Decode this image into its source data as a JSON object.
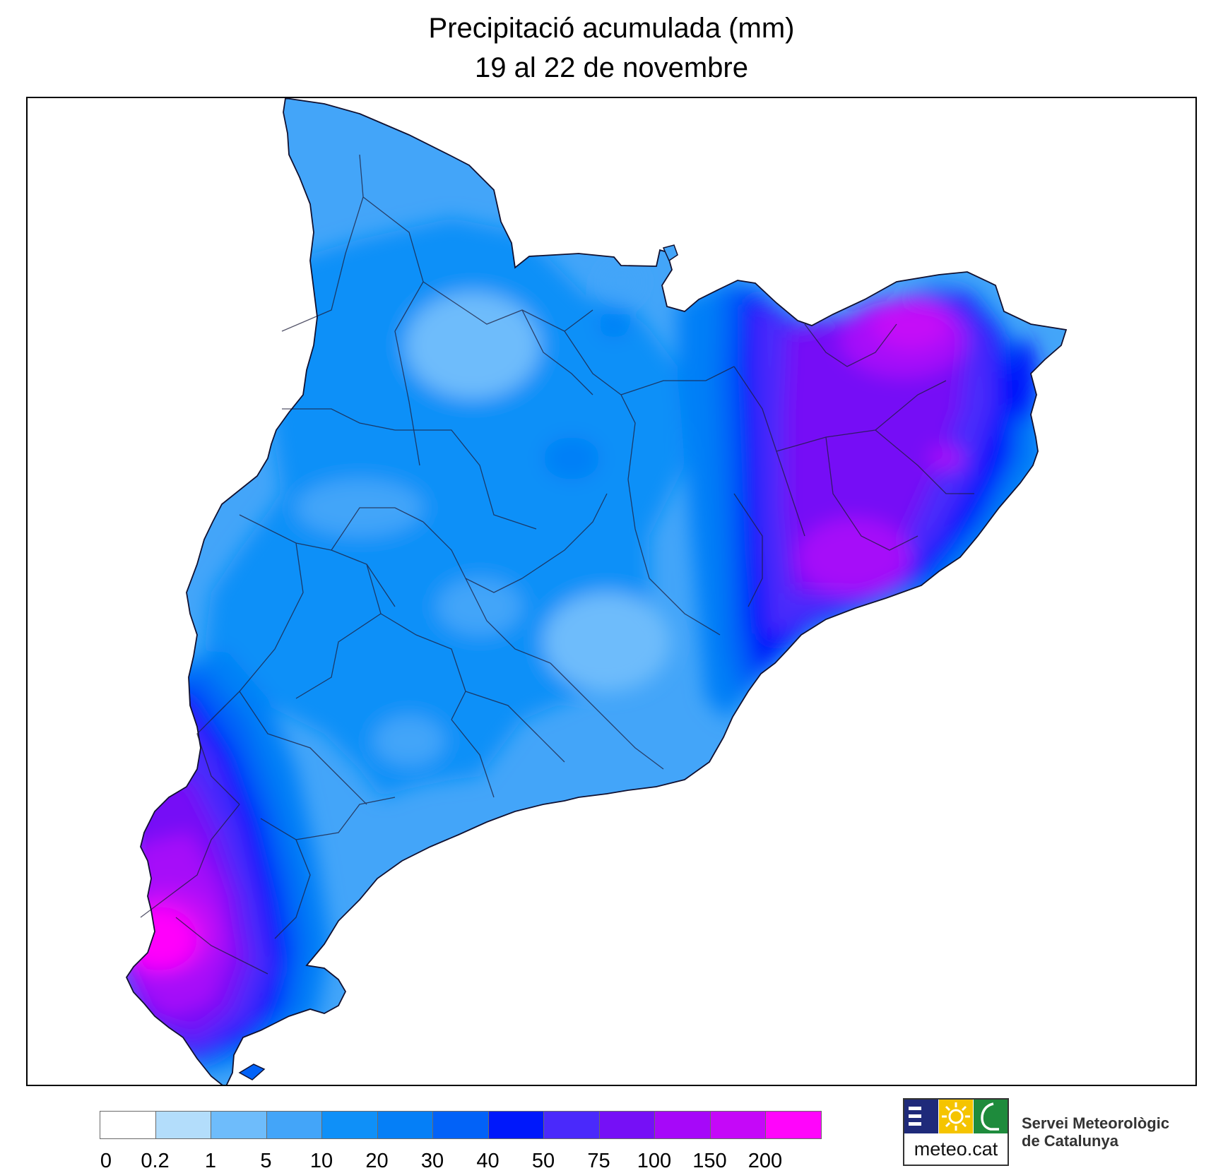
{
  "title": {
    "line1": "Precipitació acumulada (mm)",
    "line2": "19 al 22 de novembre"
  },
  "legend": {
    "colors": [
      "#ffffff",
      "#b3ddfb",
      "#6ebcfb",
      "#43a5f9",
      "#0f90f8",
      "#057ff7",
      "#0262f8",
      "#0018fb",
      "#4a29fb",
      "#7610f6",
      "#a608f9",
      "#c508f8",
      "#ff05fb"
    ],
    "labels": [
      "0",
      "0.2",
      "1",
      "5",
      "10",
      "20",
      "30",
      "40",
      "50",
      "75",
      "100",
      "150",
      "200"
    ]
  },
  "logo": {
    "text": "meteo.cat",
    "icons": [
      "bars-icon",
      "sun-icon",
      "catalonia-outline-icon"
    ],
    "colors": {
      "blue": "#1f2a7a",
      "yellow": "#f5c400",
      "green": "#1e8b3c"
    }
  },
  "organization": {
    "line1": "Servei Meteorològic",
    "line2": "de Catalunya"
  }
}
